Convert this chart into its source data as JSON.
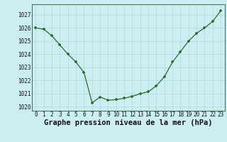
{
  "x": [
    0,
    1,
    2,
    3,
    4,
    5,
    6,
    7,
    8,
    9,
    10,
    11,
    12,
    13,
    14,
    15,
    16,
    17,
    18,
    19,
    20,
    21,
    22,
    23
  ],
  "y": [
    1026.0,
    1025.9,
    1025.4,
    1024.7,
    1024.0,
    1023.4,
    1022.6,
    1020.3,
    1020.75,
    1020.5,
    1020.55,
    1020.65,
    1020.8,
    1021.0,
    1021.15,
    1021.6,
    1022.3,
    1023.4,
    1024.2,
    1025.0,
    1025.6,
    1026.0,
    1026.5,
    1027.3
  ],
  "line_color": "#2d6a2d",
  "marker_color": "#2d6a2d",
  "bg_color": "#cceef2",
  "grid_color": "#b0d8dc",
  "ylabel_ticks": [
    1020,
    1021,
    1022,
    1023,
    1024,
    1025,
    1026,
    1027
  ],
  "xlabel": "Graphe pression niveau de la mer (hPa)",
  "ylim": [
    1019.7,
    1027.8
  ],
  "xlim": [
    -0.5,
    23.5
  ],
  "xlabel_fontsize": 7.5,
  "tick_fontsize": 5.5
}
